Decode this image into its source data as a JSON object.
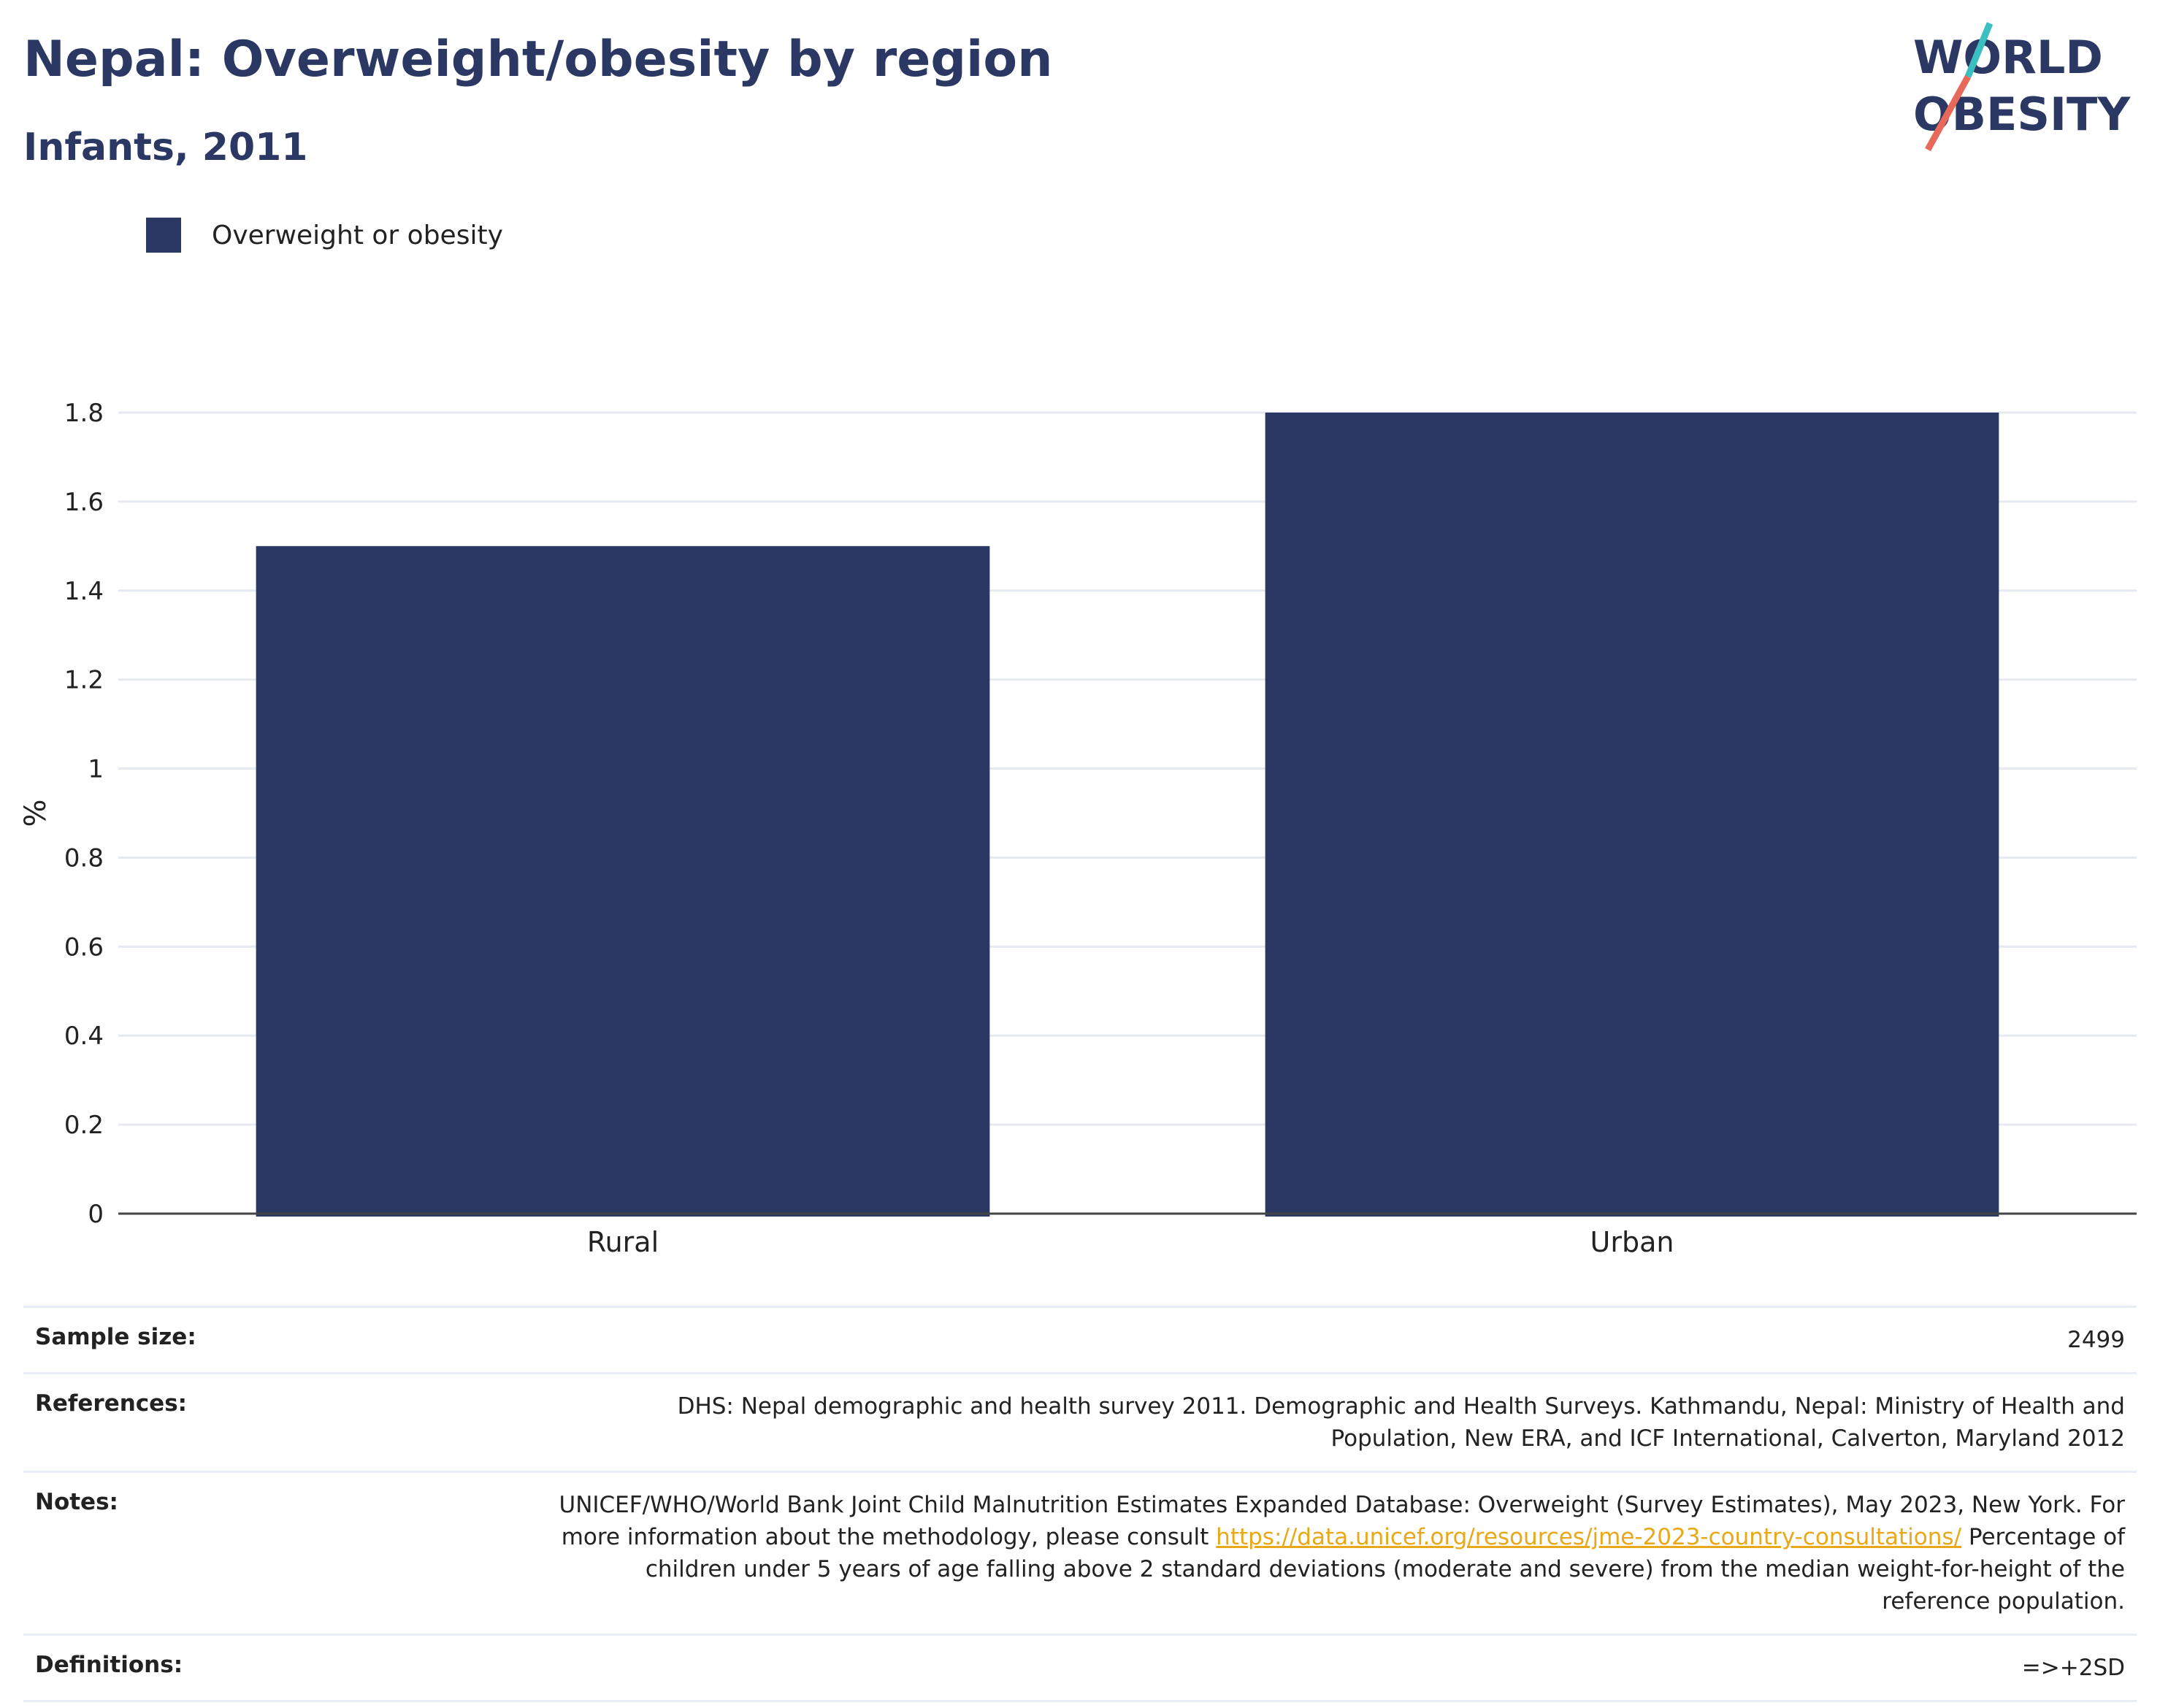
{
  "header": {
    "title": "Nepal: Overweight/obesity by region",
    "subtitle": "Infants, 2011"
  },
  "logo": {
    "line1": "WORLD",
    "line2": "OBESITY",
    "text_color": "#2a3863",
    "slash_teal": "#3bbfc0",
    "slash_red": "#e8685a"
  },
  "legend": {
    "label": "Overweight or obesity",
    "color": "#2a3863"
  },
  "chart_data": {
    "type": "bar",
    "categories": [
      "Rural",
      "Urban"
    ],
    "series": [
      {
        "name": "Overweight or obesity",
        "values": [
          1.5,
          1.8
        ],
        "color": "#2a3863"
      }
    ],
    "ylabel": "%",
    "xlabel": "",
    "ylim": [
      0,
      1.8
    ],
    "yticks": [
      "0",
      "0.2",
      "0.4",
      "0.6",
      "0.8",
      "1",
      "1.2",
      "1.4",
      "1.6",
      "1.8"
    ],
    "grid": true,
    "legend_position": "top-left"
  },
  "info": {
    "sample_size_label": "Sample size:",
    "sample_size_value": "2499",
    "references_label": "References:",
    "references_value": "DHS: Nepal demographic and health survey 2011. Demographic and Health Surveys. Kathmandu, Nepal: Ministry of Health and Population, New ERA, and ICF International, Calverton, Maryland 2012",
    "notes_label": "Notes:",
    "notes_text_1": "UNICEF/WHO/World Bank Joint Child Malnutrition Estimates Expanded Database: Overweight (Survey Estimates), May 2023, New York. For more information about the methodology, please consult ",
    "notes_link": "https://data.unicef.org/resources/jme-2023-country-consultations/",
    "notes_text_2": " Percentage of children under 5 years of age falling above 2 standard deviations (moderate and severe) from the median weight-for-height of the reference population.",
    "definitions_label": "Definitions:",
    "definitions_value": "=>+2SD"
  }
}
